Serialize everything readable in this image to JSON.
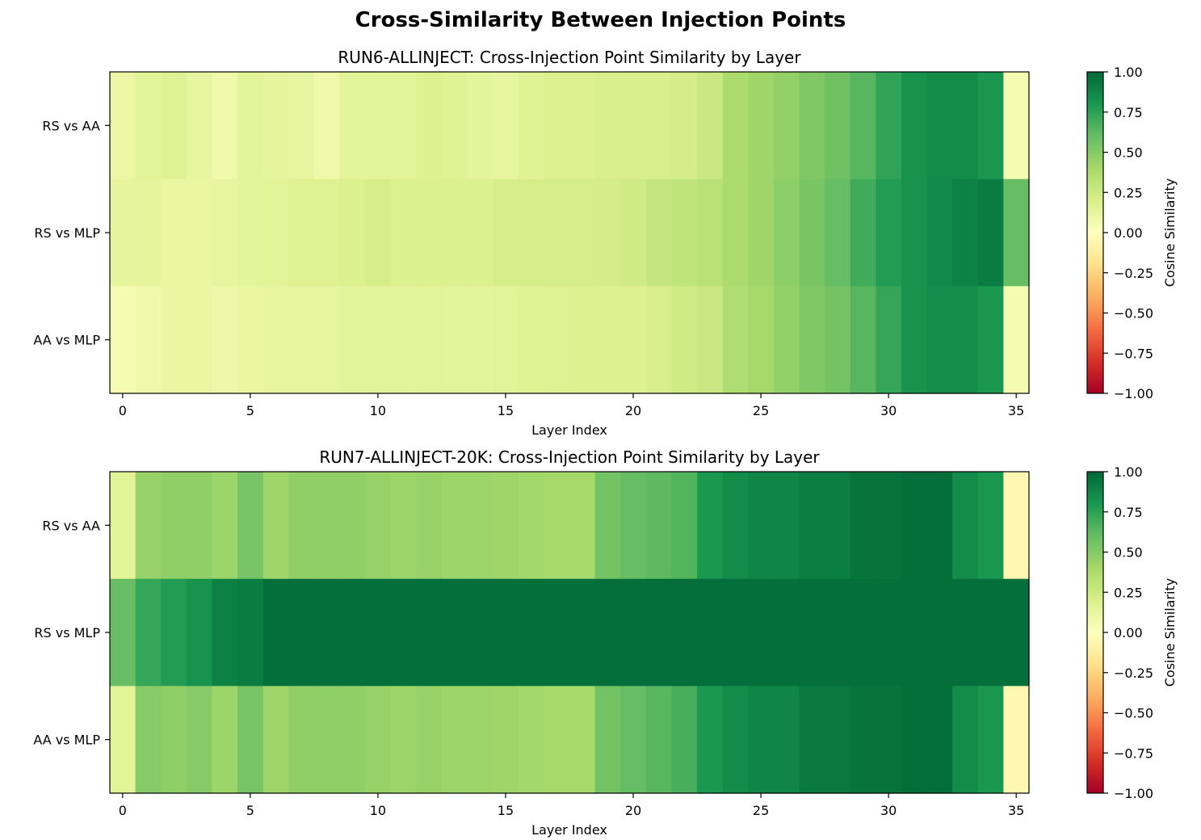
{
  "figure": {
    "title": "Cross-Similarity Between Injection Points"
  },
  "chart_data": [
    {
      "type": "heatmap",
      "title": "RUN6-ALLINJECT: Cross-Injection Point Similarity by Layer",
      "xlabel": "Layer Index",
      "ylabel": "",
      "rows": [
        "RS vs AA",
        "RS vs MLP",
        "AA vs MLP"
      ],
      "x_ticks": [
        0,
        5,
        10,
        15,
        20,
        25,
        30,
        35
      ],
      "x_range": [
        -0.5,
        35.5
      ],
      "colorbar": {
        "label": "Cosine Similarity",
        "colormap": "RdYlGn",
        "vmin": -1.0,
        "vmax": 1.0,
        "ticks": [
          1.0,
          0.75,
          0.5,
          0.25,
          0.0,
          -0.25,
          -0.5,
          -0.75,
          -1.0
        ],
        "tick_labels": [
          "1.00",
          "0.75",
          "0.50",
          "0.25",
          "0.00",
          "−0.25",
          "−0.50",
          "−0.75",
          "−1.00"
        ]
      },
      "values": [
        [
          0.1,
          0.15,
          0.17,
          0.12,
          0.08,
          0.15,
          0.13,
          0.12,
          0.08,
          0.15,
          0.15,
          0.15,
          0.18,
          0.16,
          0.14,
          0.12,
          0.16,
          0.18,
          0.18,
          0.2,
          0.2,
          0.2,
          0.22,
          0.26,
          0.38,
          0.42,
          0.46,
          0.52,
          0.57,
          0.64,
          0.74,
          0.82,
          0.85,
          0.85,
          0.8,
          0.05
        ],
        [
          0.13,
          0.13,
          0.11,
          0.11,
          0.12,
          0.14,
          0.15,
          0.17,
          0.17,
          0.19,
          0.21,
          0.19,
          0.19,
          0.19,
          0.19,
          0.21,
          0.21,
          0.21,
          0.21,
          0.22,
          0.24,
          0.28,
          0.3,
          0.33,
          0.38,
          0.42,
          0.48,
          0.54,
          0.6,
          0.7,
          0.78,
          0.82,
          0.86,
          0.89,
          0.92,
          0.6
        ],
        [
          0.05,
          0.08,
          0.11,
          0.11,
          0.09,
          0.11,
          0.12,
          0.12,
          0.12,
          0.14,
          0.14,
          0.14,
          0.15,
          0.14,
          0.14,
          0.15,
          0.16,
          0.17,
          0.18,
          0.18,
          0.18,
          0.2,
          0.24,
          0.26,
          0.36,
          0.4,
          0.46,
          0.52,
          0.56,
          0.64,
          0.73,
          0.82,
          0.84,
          0.84,
          0.8,
          0.05
        ]
      ]
    },
    {
      "type": "heatmap",
      "title": "RUN7-ALLINJECT-20K: Cross-Injection Point Similarity by Layer",
      "xlabel": "Layer Index",
      "ylabel": "",
      "rows": [
        "RS vs AA",
        "RS vs MLP",
        "AA vs MLP"
      ],
      "x_ticks": [
        0,
        5,
        10,
        15,
        20,
        25,
        30,
        35
      ],
      "x_range": [
        -0.5,
        35.5
      ],
      "colorbar": {
        "label": "Cosine Similarity",
        "colormap": "RdYlGn",
        "vmin": -1.0,
        "vmax": 1.0,
        "ticks": [
          1.0,
          0.75,
          0.5,
          0.25,
          0.0,
          -0.25,
          -0.5,
          -0.75,
          -1.0
        ],
        "tick_labels": [
          "1.00",
          "0.75",
          "0.50",
          "0.25",
          "0.00",
          "−0.25",
          "−0.50",
          "−0.75",
          "−1.00"
        ]
      },
      "values": [
        [
          0.15,
          0.45,
          0.47,
          0.47,
          0.43,
          0.55,
          0.42,
          0.47,
          0.47,
          0.47,
          0.45,
          0.43,
          0.45,
          0.43,
          0.43,
          0.42,
          0.41,
          0.4,
          0.4,
          0.56,
          0.6,
          0.62,
          0.65,
          0.8,
          0.85,
          0.88,
          0.88,
          0.91,
          0.91,
          0.95,
          0.95,
          0.97,
          0.97,
          0.85,
          0.8,
          -0.05
        ],
        [
          0.6,
          0.73,
          0.78,
          0.82,
          0.9,
          0.92,
          0.97,
          0.97,
          0.97,
          0.97,
          0.97,
          0.97,
          0.97,
          0.97,
          0.97,
          0.97,
          0.97,
          0.97,
          0.97,
          0.97,
          0.97,
          0.97,
          0.97,
          0.97,
          0.97,
          0.97,
          0.97,
          0.97,
          0.97,
          0.97,
          0.97,
          0.97,
          0.97,
          0.97,
          0.97,
          0.97
        ],
        [
          0.15,
          0.5,
          0.47,
          0.5,
          0.43,
          0.55,
          0.42,
          0.47,
          0.47,
          0.47,
          0.45,
          0.43,
          0.45,
          0.43,
          0.43,
          0.42,
          0.41,
          0.4,
          0.4,
          0.56,
          0.6,
          0.64,
          0.68,
          0.8,
          0.85,
          0.88,
          0.88,
          0.93,
          0.93,
          0.95,
          0.95,
          0.97,
          0.97,
          0.85,
          0.8,
          -0.05
        ]
      ]
    }
  ]
}
